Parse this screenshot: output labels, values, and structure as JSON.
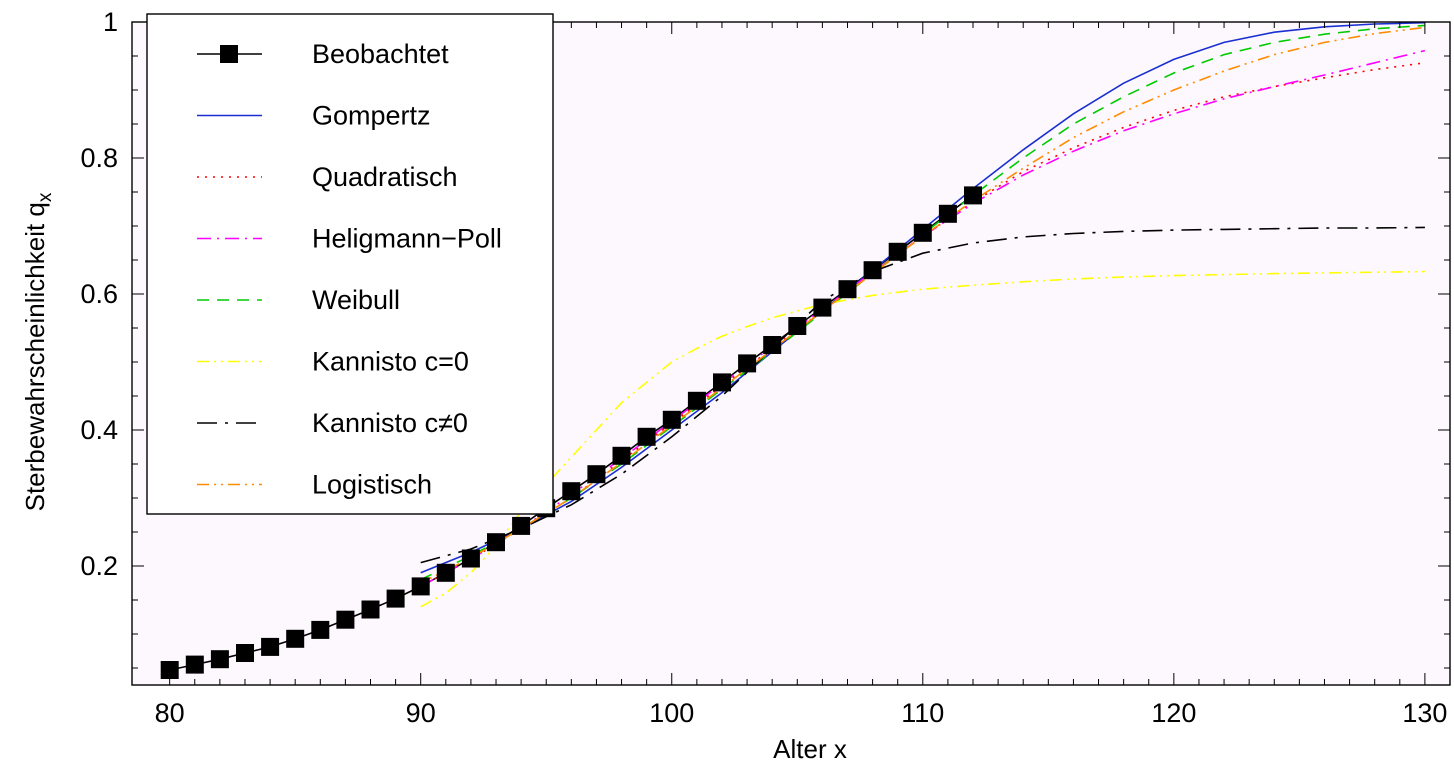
{
  "chart_data": {
    "type": "line",
    "title": "",
    "xlabel": "Alter x",
    "ylabel": "Sterbewahrscheinlichkeit q",
    "ylabel_sub": "x",
    "xlim": [
      78.5,
      131
    ],
    "ylim": [
      0.025,
      1.0
    ],
    "xticks": [
      80,
      90,
      100,
      110,
      120,
      130
    ],
    "yticks": [
      0.2,
      0.4,
      0.6,
      0.8,
      1
    ],
    "ytick_labels": [
      "0.2",
      "0.4",
      "0.6",
      "0.8",
      "1"
    ],
    "grid": false,
    "legend_position": "top-left",
    "background": "#fdf8fd",
    "series": [
      {
        "name": "Beobachtet",
        "color": "#000000",
        "style": "solid-square",
        "x": [
          80,
          81,
          82,
          83,
          84,
          85,
          86,
          87,
          88,
          89,
          90,
          91,
          92,
          93,
          94,
          95,
          96,
          97,
          98,
          99,
          100,
          101,
          102,
          103,
          104,
          105,
          106,
          107,
          108,
          109,
          110,
          111,
          112
        ],
        "y": [
          0.047,
          0.055,
          0.063,
          0.072,
          0.081,
          0.093,
          0.106,
          0.121,
          0.136,
          0.152,
          0.17,
          0.19,
          0.211,
          0.235,
          0.259,
          0.285,
          0.31,
          0.335,
          0.362,
          0.39,
          0.415,
          0.443,
          0.47,
          0.498,
          0.525,
          0.553,
          0.58,
          0.607,
          0.635,
          0.662,
          0.69,
          0.718,
          0.745
        ]
      },
      {
        "name": "Gompertz",
        "color": "#1a2fd1",
        "style": "solid",
        "x": [
          90,
          92,
          94,
          96,
          98,
          100,
          102,
          104,
          106,
          108,
          110,
          112,
          114,
          116,
          118,
          120,
          122,
          124,
          126,
          128,
          130
        ],
        "y": [
          0.19,
          0.22,
          0.255,
          0.295,
          0.345,
          0.4,
          0.455,
          0.515,
          0.575,
          0.635,
          0.695,
          0.755,
          0.812,
          0.865,
          0.91,
          0.945,
          0.97,
          0.985,
          0.993,
          0.997,
          0.999
        ]
      },
      {
        "name": "Quadratisch",
        "color": "#ff0000",
        "style": "dotted",
        "x": [
          90,
          92,
          94,
          96,
          98,
          100,
          102,
          104,
          106,
          108,
          110,
          112,
          114,
          116,
          118,
          120,
          122,
          124,
          126,
          128,
          130
        ],
        "y": [
          0.17,
          0.21,
          0.255,
          0.3,
          0.355,
          0.41,
          0.465,
          0.52,
          0.575,
          0.63,
          0.685,
          0.735,
          0.78,
          0.815,
          0.845,
          0.87,
          0.89,
          0.905,
          0.918,
          0.93,
          0.94
        ]
      },
      {
        "name": "Heligmann−Poll",
        "color": "#ff00ff",
        "style": "dash-dot",
        "x": [
          90,
          92,
          94,
          96,
          98,
          100,
          102,
          104,
          106,
          108,
          110,
          112,
          114,
          116,
          118,
          120,
          122,
          124,
          126,
          128,
          130
        ],
        "y": [
          0.17,
          0.21,
          0.255,
          0.305,
          0.358,
          0.413,
          0.468,
          0.523,
          0.578,
          0.632,
          0.685,
          0.733,
          0.775,
          0.81,
          0.84,
          0.865,
          0.887,
          0.905,
          0.922,
          0.94,
          0.958
        ]
      },
      {
        "name": "Weibull",
        "color": "#00cc00",
        "style": "dashed",
        "x": [
          90,
          92,
          94,
          96,
          98,
          100,
          102,
          104,
          106,
          108,
          110,
          112,
          114,
          116,
          118,
          120,
          122,
          124,
          126,
          128,
          130
        ],
        "y": [
          0.18,
          0.215,
          0.255,
          0.3,
          0.35,
          0.405,
          0.46,
          0.515,
          0.573,
          0.63,
          0.688,
          0.745,
          0.8,
          0.85,
          0.89,
          0.925,
          0.952,
          0.97,
          0.982,
          0.99,
          0.995
        ]
      },
      {
        "name": "Kannisto c=0",
        "color": "#ffff00",
        "style": "dash-dot-dot",
        "x": [
          90,
          91,
          92,
          93,
          94,
          95,
          96,
          97,
          98,
          99,
          100,
          101,
          102,
          103,
          104,
          106,
          108,
          110,
          112,
          114,
          116,
          118,
          120,
          124,
          126,
          128,
          130
        ],
        "y": [
          0.14,
          0.16,
          0.19,
          0.23,
          0.28,
          0.32,
          0.36,
          0.4,
          0.44,
          0.47,
          0.5,
          0.52,
          0.538,
          0.552,
          0.565,
          0.585,
          0.598,
          0.607,
          0.613,
          0.618,
          0.622,
          0.625,
          0.627,
          0.63,
          0.631,
          0.632,
          0.633
        ]
      },
      {
        "name": "Kannisto c≠0",
        "color": "#000000",
        "style": "long-dash-dot",
        "x": [
          90,
          92,
          94,
          96,
          98,
          100,
          102,
          104,
          106,
          108,
          110,
          112,
          114,
          116,
          118,
          120,
          122,
          124,
          126,
          128,
          130
        ],
        "y": [
          0.205,
          0.225,
          0.255,
          0.29,
          0.335,
          0.39,
          0.45,
          0.52,
          0.59,
          0.633,
          0.66,
          0.675,
          0.684,
          0.689,
          0.692,
          0.694,
          0.695,
          0.696,
          0.697,
          0.697,
          0.698
        ]
      },
      {
        "name": "Logistisch",
        "color": "#ff8c00",
        "style": "dash-dot-dot",
        "x": [
          90,
          92,
          94,
          96,
          98,
          100,
          102,
          104,
          106,
          108,
          110,
          112,
          114,
          116,
          118,
          120,
          122,
          124,
          126,
          128,
          130
        ],
        "y": [
          0.175,
          0.212,
          0.255,
          0.3,
          0.352,
          0.407,
          0.462,
          0.518,
          0.575,
          0.63,
          0.685,
          0.737,
          0.785,
          0.83,
          0.868,
          0.9,
          0.928,
          0.952,
          0.97,
          0.983,
          0.992
        ]
      }
    ]
  }
}
